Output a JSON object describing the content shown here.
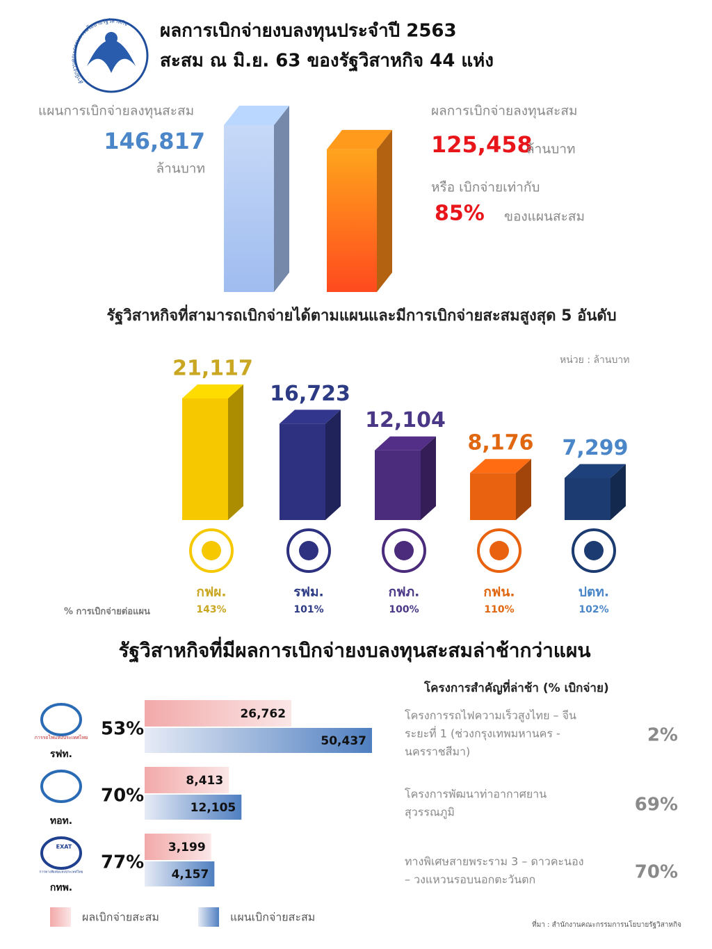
{
  "header": {
    "title": [
      "ผลการเบิกจ่ายงบลงทุนประจำปี 2563",
      "สะสม ณ มิ.ย. 63 ของรัฐวิสาหกิจ 44 แห่ง"
    ],
    "logo_text": "สำนักงานคณะกรรมการนโยบายรัฐวิสาหกิจ"
  },
  "chart_data": [
    {
      "type": "bar3d",
      "categories": [
        "แผนการเบิกจ่ายลงทุนสะสม",
        "ผลการเบิกจ่ายลงทุนสะสม"
      ],
      "values": [
        146817,
        125458
      ],
      "value_labels": [
        "146,817",
        "125,458"
      ],
      "colors": [
        "#a9c4f3",
        "#ff8c1a"
      ],
      "label_colors": [
        "#4a86c8",
        "#e8151b"
      ],
      "unit": "ล้านบาท",
      "ratio_text": "หรือ เบิกจ่ายเท่ากับ",
      "ratio": 85,
      "ratio_label": "85%",
      "ratio_suffix": "ของแผนสะสม"
    },
    {
      "type": "bar3d",
      "title": "รัฐวิสาหกิจที่สามารถเบิกจ่ายได้ตามแผนและมีการเบิกจ่ายสะสมสูงสุด 5 อันดับ",
      "unit": "หน่วย : ล้านบาท",
      "categories": [
        "กฟผ.",
        "รฟม.",
        "กฟภ.",
        "กฟน.",
        "ปตท."
      ],
      "values": [
        21117,
        16723,
        12104,
        8176,
        7299
      ],
      "value_labels": [
        "21,117",
        "16,723",
        "12,104",
        "8,176",
        "7,299"
      ],
      "colors": [
        "#f5c800",
        "#2e3180",
        "#4b2b7c",
        "#e8620f",
        "#1c3b70"
      ],
      "label_colors": [
        "#c9a722",
        "#2d3a84",
        "#4a3786",
        "#e0660f",
        "#4a86c8"
      ],
      "pct_title": "% การเบิกจ่ายต่อแผน",
      "pct": [
        143,
        101,
        100,
        110,
        102
      ],
      "pct_labels": [
        "143%",
        "101%",
        "100%",
        "110%",
        "102%"
      ]
    },
    {
      "type": "hbar",
      "title": "รัฐวิสาหกิจที่มีผลการเบิกจ่ายงบลงทุนสะสมล่าช้ากว่าแผน",
      "categories": [
        "รฟท.",
        "ทอท.",
        "กทพ."
      ],
      "series": [
        {
          "name": "ผลเบิกจ่ายสะสม",
          "color": "#f2a9a9",
          "values": [
            26762,
            8413,
            3199
          ],
          "value_labels": [
            "26,762",
            "8,413",
            "3,199"
          ]
        },
        {
          "name": "แผนเบิกจ่ายสะสม",
          "color": "#4f7fc0",
          "values": [
            50437,
            12105,
            4157
          ],
          "value_labels": [
            "50,437",
            "12,105",
            "4,157"
          ]
        }
      ],
      "pct": [
        53,
        70,
        77
      ],
      "pct_labels": [
        "53%",
        "70%",
        "77%"
      ],
      "logo_texts": [
        "การรถไฟแห่งประเทศไทย",
        "EXAT",
        "การทางพิเศษแห่งประเทศไทย"
      ]
    }
  ],
  "projects": {
    "title": "โครงการสำคัญที่ล่าช้า (% เบิกจ่าย)",
    "items": [
      {
        "lines": [
          "โครงการรถไฟความเร็วสูงไทย – จีน",
          "ระยะที่ 1 (ช่วงกรุงเทพมหานคร -",
          "นครราชสีมา)"
        ],
        "pct": 2,
        "pct_label": "2%"
      },
      {
        "lines": [
          "โครงการพัฒนาท่าอากาศยาน",
          "สุวรรณภูมิ"
        ],
        "pct": 69,
        "pct_label": "69%"
      },
      {
        "lines": [
          "ทางพิเศษสายพระราม 3 – ดาวคะนอง",
          "– วงแหวนรอบนอกตะวันตก"
        ],
        "pct": 70,
        "pct_label": "70%"
      }
    ]
  },
  "source": "ที่มา : สำนักงานคณะกรรมการนโยบายรัฐวิสาหกิจ"
}
